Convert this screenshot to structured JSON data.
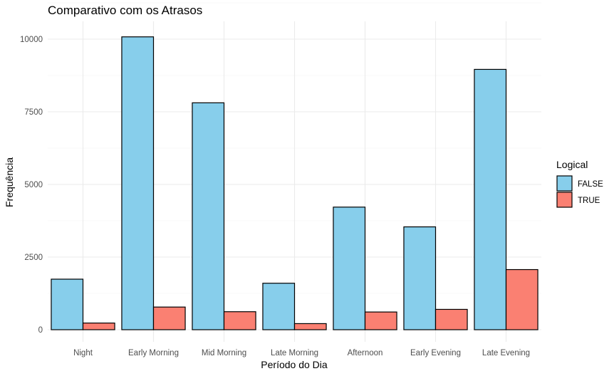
{
  "chart_data": {
    "type": "bar",
    "title": "Comparativo com os Atrasos",
    "xlabel": "Período do Dia",
    "ylabel": "Frequência",
    "categories": [
      "Night",
      "Early Morning",
      "Mid Morning",
      "Late Morning",
      "Afternoon",
      "Early Evening",
      "Late Evening"
    ],
    "series": [
      {
        "name": "FALSE",
        "color": "#87CEEB",
        "values": [
          1740,
          10080,
          7810,
          1600,
          4220,
          3540,
          8960
        ]
      },
      {
        "name": "TRUE",
        "color": "#FA8072",
        "values": [
          230,
          780,
          620,
          210,
          610,
          700,
          2070
        ]
      }
    ],
    "ylim": [
      0,
      10600
    ],
    "yticks": [
      0,
      2500,
      5000,
      7500,
      10000
    ],
    "ytick_labels": [
      "0",
      "2500",
      "5000",
      "7500",
      "10000"
    ],
    "grid": true,
    "legend": {
      "title": "Logical",
      "position": "right"
    }
  }
}
